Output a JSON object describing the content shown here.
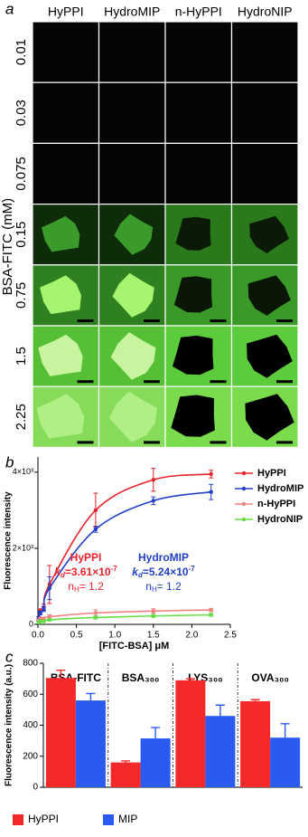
{
  "image_grid": {
    "panel_label": "a",
    "y_label": "BSA-FITC (mM)",
    "columns": [
      "HyPPI",
      "HydroMIP",
      "n-HyPPI",
      "HydroNIP"
    ],
    "rows": [
      "0.01",
      "0.03",
      "0.075",
      "0.15",
      "0.75",
      "1.5",
      "2.25"
    ]
  },
  "chart_data": [
    {
      "type": "line",
      "panel_label": "b",
      "x_label": "[FITC-BSA] μM",
      "y_label": "Fluorescence intensity",
      "x": [
        0.01,
        0.03,
        0.075,
        0.15,
        0.75,
        1.5,
        2.25
      ],
      "series": [
        {
          "name": "HyPPI",
          "color": "#e8232a",
          "values": [
            150,
            350,
            450,
            1050,
            3000,
            3800,
            3950
          ],
          "errors": [
            50,
            60,
            80,
            500,
            450,
            300,
            100
          ]
        },
        {
          "name": "HydroMIP",
          "color": "#2340c8",
          "values": [
            150,
            300,
            400,
            950,
            2500,
            3250,
            3480
          ],
          "errors": [
            50,
            50,
            60,
            300,
            80,
            100,
            200
          ]
        },
        {
          "name": "n-HyPPI",
          "color": "#f08080",
          "values": [
            100,
            150,
            150,
            200,
            300,
            350,
            380
          ],
          "errors": [
            30,
            30,
            30,
            50,
            80,
            60,
            40
          ]
        },
        {
          "name": "HydroNIP",
          "color": "#66dd44",
          "values": [
            50,
            80,
            80,
            120,
            180,
            220,
            250
          ],
          "errors": [
            20,
            20,
            20,
            30,
            40,
            40,
            40
          ]
        }
      ],
      "xlim": [
        0,
        2.5
      ],
      "xticks": [
        {
          "value": 0,
          "label": "0.0"
        },
        0.5,
        {
          "value": 1,
          "label": "1.0"
        },
        1.5,
        {
          "value": 2,
          "label": "2.0"
        },
        2.5
      ],
      "ylim": [
        0,
        4400
      ],
      "yticks": [
        0,
        {
          "value": 2000,
          "label": "2×10³"
        },
        {
          "value": 4000,
          "label": "4×10³"
        }
      ],
      "grid": false,
      "legend": "upper right",
      "annotations": [
        {
          "color": "#e8232a",
          "lines": [
            [
              {
                "text": "HyPPI"
              }
            ],
            [
              {
                "text": "k",
                "italic": true
              },
              {
                "text": "d",
                "sub": true,
                "italic": true
              },
              {
                "text": "=3.61×10"
              },
              {
                "text": "-7",
                "sup": true
              }
            ],
            [
              {
                "text": "n"
              },
              {
                "text": "H",
                "sub": true
              },
              {
                "text": "= 1.2"
              }
            ]
          ]
        },
        {
          "color": "#2340c8",
          "lines": [
            [
              {
                "text": "HydroMIP"
              }
            ],
            [
              {
                "text": "k",
                "italic": true
              },
              {
                "text": "d",
                "sub": true,
                "italic": true
              },
              {
                "text": "=5.24×10"
              },
              {
                "text": "-7",
                "sup": true
              }
            ],
            [
              {
                "text": "n"
              },
              {
                "text": "H",
                "sub": true
              },
              {
                "text": "= 1.2"
              }
            ]
          ]
        }
      ]
    },
    {
      "type": "bar",
      "panel_label": "c",
      "y_label": "Fluorescence intensity (a.u.)",
      "categories": [
        "BSA-FITC",
        "BSA₃₀₀",
        "LYS₃₀₀",
        "OVA₃₀₀"
      ],
      "series": [
        {
          "name": "HyPPI",
          "color": "#f42a2a",
          "values": [
            705,
            160,
            690,
            555
          ],
          "errors": [
            50,
            10,
            10,
            10
          ]
        },
        {
          "name": "MIP",
          "color": "#2b5af0",
          "values": [
            560,
            315,
            460,
            320
          ],
          "errors": [
            45,
            70,
            70,
            90
          ]
        }
      ],
      "ylim": [
        0,
        800
      ],
      "yticks": [
        0,
        200,
        400,
        600,
        800
      ],
      "grid": false,
      "legend": "bottom"
    }
  ]
}
